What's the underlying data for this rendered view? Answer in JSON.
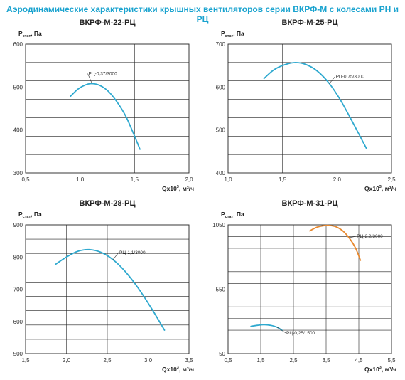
{
  "title": "Аэродинамические характеристики крышных вентиляторов серии ВКРФ-М с колесами РН и РЦ",
  "chart_data": [
    {
      "type": "line",
      "title": "ВКРФ-М-22-РЦ",
      "ylabel": "P",
      "ylabel_sub": "стат",
      "ylabel_unit": ", Па",
      "xlabel": "Qx10",
      "xlabel_sup": "3",
      "xlabel_unit": ", м³/ч",
      "xlim": [
        0.5,
        2.0
      ],
      "ylim": [
        300,
        600
      ],
      "xticks": [
        "0,5",
        "1,0",
        "1,5",
        "2,0"
      ],
      "yticks": [
        "300",
        "400",
        "500",
        "600"
      ],
      "series": [
        {
          "name": "РЦ-0,37/3000",
          "color": "#2fa9cf",
          "x": [
            0.91,
            0.98,
            1.05,
            1.11,
            1.18,
            1.26,
            1.34,
            1.42,
            1.49,
            1.55
          ],
          "y": [
            478,
            495,
            505,
            508,
            504,
            490,
            465,
            432,
            392,
            355
          ]
        }
      ]
    },
    {
      "type": "line",
      "title": "ВКРФ-М-25-РЦ",
      "ylabel": "P",
      "ylabel_sub": "стат",
      "ylabel_unit": ", Па",
      "xlabel": "Qx10",
      "xlabel_sup": "3",
      "xlabel_unit": ", м³/ч",
      "xlim": [
        1.0,
        2.5
      ],
      "ylim": [
        400,
        700
      ],
      "xticks": [
        "1,0",
        "1,5",
        "2,0",
        "2,5"
      ],
      "yticks": [
        "400",
        "500",
        "600",
        "700"
      ],
      "series": [
        {
          "name": "РЦ-0,75/3000",
          "color": "#2fa9cf",
          "x": [
            1.33,
            1.42,
            1.52,
            1.62,
            1.72,
            1.82,
            1.93,
            2.04,
            2.16,
            2.27
          ],
          "y": [
            620,
            640,
            652,
            657,
            652,
            637,
            608,
            566,
            510,
            457
          ]
        }
      ]
    },
    {
      "type": "line",
      "title": "ВКРФ-М-28-РЦ",
      "ylabel": "P",
      "ylabel_sub": "стат",
      "ylabel_unit": ", Па",
      "xlabel": "Qx10",
      "xlabel_sup": "3",
      "xlabel_unit": ", м³/ч",
      "xlim": [
        1.5,
        3.5
      ],
      "ylim": [
        500,
        900
      ],
      "xticks": [
        "1,5",
        "2,0",
        "2,5",
        "3,0",
        "3,5"
      ],
      "yticks": [
        "500",
        "600",
        "700",
        "800",
        "900"
      ],
      "series": [
        {
          "name": "РЦ-1,1/3000",
          "color": "#2fa9cf",
          "x": [
            1.87,
            2.0,
            2.14,
            2.28,
            2.42,
            2.57,
            2.72,
            2.88,
            3.05,
            3.2
          ],
          "y": [
            778,
            800,
            818,
            823,
            815,
            792,
            755,
            703,
            637,
            573
          ]
        }
      ]
    },
    {
      "type": "line",
      "title": "ВКРФ-М-31-РЦ",
      "ylabel": "P",
      "ylabel_sub": "стат",
      "ylabel_unit": ", Па",
      "xlabel": "Qx10",
      "xlabel_sup": "3",
      "xlabel_unit": ", м³/ч",
      "xlim": [
        0.5,
        5.5
      ],
      "ylim": [
        50,
        1050
      ],
      "xticks": [
        "0,5",
        "1,5",
        "2,5",
        "3,5",
        "4,5",
        "5,5"
      ],
      "yticks": [
        "50",
        "550",
        "1050"
      ],
      "series": [
        {
          "name": "РЦ-2,2/3000",
          "color": "#e8892f",
          "x": [
            3.0,
            3.2,
            3.4,
            3.6,
            3.8,
            4.0,
            4.2,
            4.4,
            4.55
          ],
          "y": [
            1003,
            1030,
            1043,
            1045,
            1035,
            1005,
            950,
            870,
            775
          ]
        },
        {
          "name": "РЦ-0,25/1500",
          "color": "#2fa9cf",
          "x": [
            1.2,
            1.4,
            1.6,
            1.8,
            2.0,
            2.15
          ],
          "y": [
            262,
            270,
            275,
            270,
            255,
            232
          ]
        }
      ]
    }
  ]
}
